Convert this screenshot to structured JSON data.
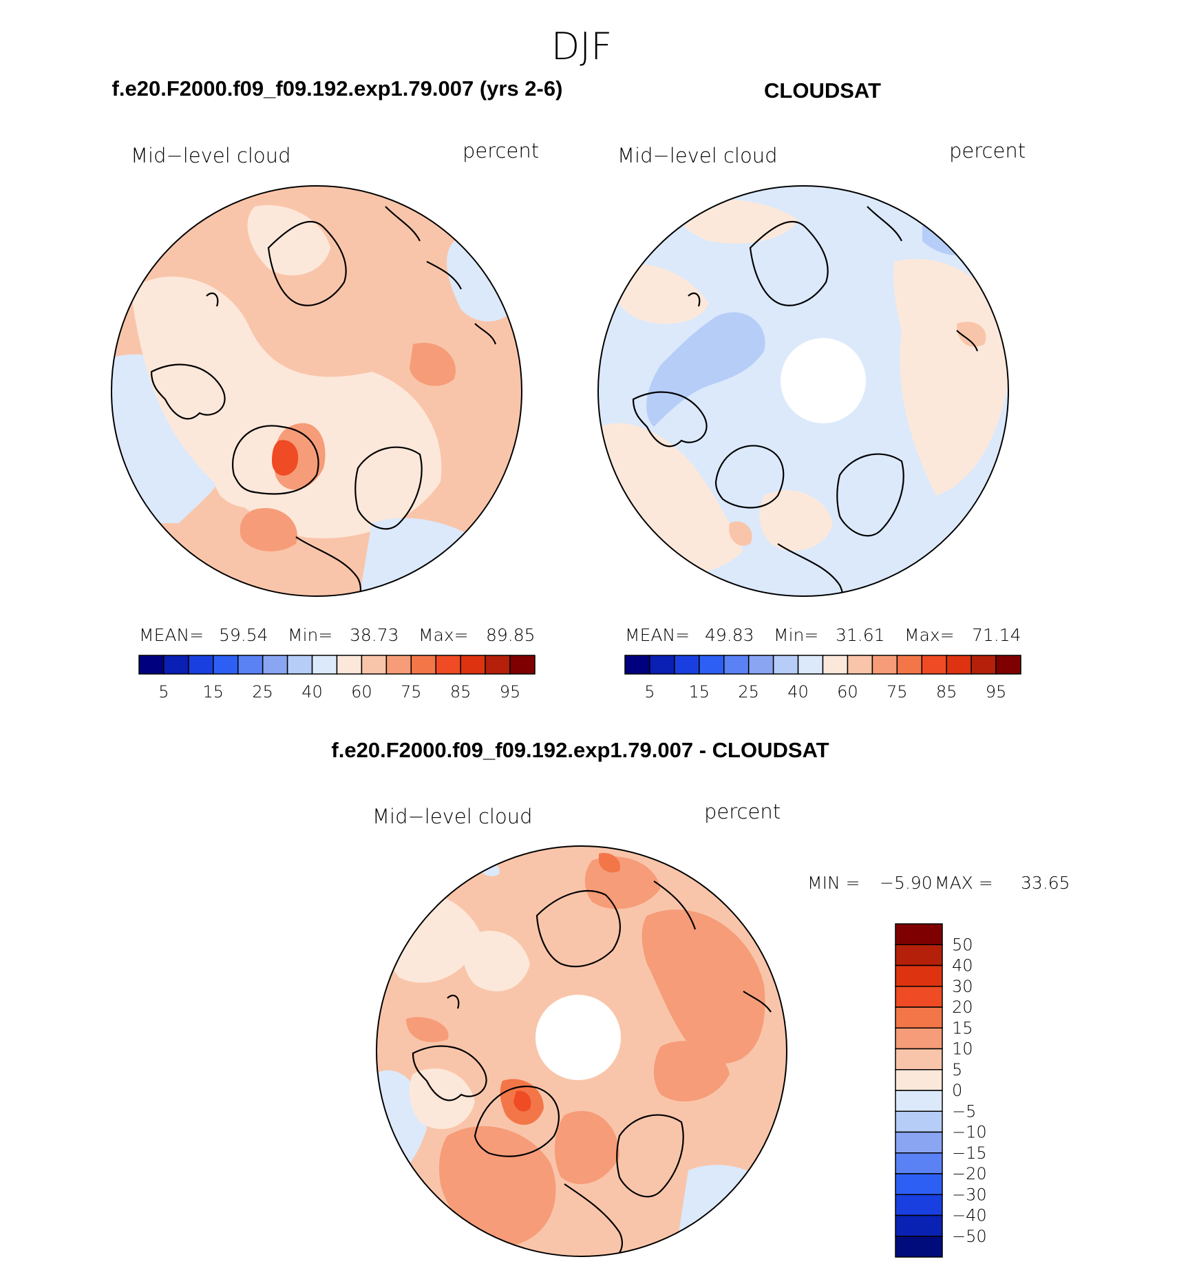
{
  "figure_title": "DJF",
  "panels": [
    {
      "title": "f.e20.F2000.f09_f09.192.exp1.79.007 (yrs 2-6)",
      "left_label": "Mid−level cloud",
      "right_label": "percent",
      "stats": {
        "mean_label": "MEAN=",
        "mean": "59.54",
        "min_label": "Min=",
        "min": "38.73",
        "max_label": "Max=",
        "max": "89.85"
      }
    },
    {
      "title": "CLOUDSAT",
      "left_label": "Mid−level cloud",
      "right_label": "percent",
      "stats": {
        "mean_label": "MEAN=",
        "mean": "49.83",
        "min_label": "Min=",
        "min": "31.61",
        "max_label": "Max=",
        "max": "71.14"
      }
    },
    {
      "title": "f.e20.F2000.f09_f09.192.exp1.79.007 - CLOUDSAT",
      "left_label": "Mid−level cloud",
      "right_label": "percent",
      "stats": {
        "min_label": "MIN =",
        "min": "−5.90",
        "max_label": "MAX =",
        "max": "33.65"
      }
    }
  ],
  "colors": {
    "palette": [
      "#00007f",
      "#0a1fb4",
      "#1a3fe0",
      "#2e5ff5",
      "#5a82f5",
      "#8aa6f3",
      "#b6cdf8",
      "#dbe9fb",
      "#fce8da",
      "#f9c5aa",
      "#f69c78",
      "#f37649",
      "#ef4b24",
      "#dd3310",
      "#b4200a",
      "#7f0000"
    ],
    "diff_palette": [
      "#000c7c",
      "#0a22b4",
      "#1a3fe0",
      "#2e5ff5",
      "#5a82f5",
      "#8aa6f3",
      "#b6cdf8",
      "#dbe9fb",
      "#fce8da",
      "#f9c5aa",
      "#f69c78",
      "#f37649",
      "#ef4b24",
      "#dd3310",
      "#b4200a",
      "#7f0000"
    ]
  },
  "chart_data": [
    {
      "type": "heatmap",
      "title": "f.e20.F2000.f09_f09.192.exp1.79.007 (yrs 2-6)",
      "variable": "Mid−level cloud",
      "units": "percent",
      "projection": "north polar stereographic",
      "colorbar_tick_labels": [
        "5",
        "15",
        "25",
        "40",
        "60",
        "75",
        "85",
        "95"
      ],
      "contour_levels": [
        5,
        10,
        15,
        20,
        25,
        30,
        40,
        50,
        60,
        70,
        75,
        80,
        85,
        90,
        95
      ],
      "mean": 59.54,
      "min": 38.73,
      "max": 89.85
    },
    {
      "type": "heatmap",
      "title": "CLOUDSAT",
      "variable": "Mid−level cloud",
      "units": "percent",
      "projection": "north polar stereographic",
      "colorbar_tick_labels": [
        "5",
        "15",
        "25",
        "40",
        "60",
        "75",
        "85",
        "95"
      ],
      "contour_levels": [
        5,
        10,
        15,
        20,
        25,
        30,
        40,
        50,
        60,
        70,
        75,
        80,
        85,
        90,
        95
      ],
      "mean": 49.83,
      "min": 31.61,
      "max": 71.14
    },
    {
      "type": "heatmap",
      "title": "f.e20.F2000.f09_f09.192.exp1.79.007 - CLOUDSAT",
      "variable": "Mid−level cloud",
      "units": "percent",
      "projection": "north polar stereographic",
      "colorbar_tick_labels": [
        "50",
        "40",
        "30",
        "20",
        "15",
        "10",
        "5",
        "0",
        "−5",
        "−10",
        "−15",
        "−20",
        "−30",
        "−40",
        "−50"
      ],
      "contour_levels": [
        -50,
        -40,
        -30,
        -20,
        -15,
        -10,
        -5,
        0,
        5,
        10,
        15,
        20,
        30,
        40,
        50
      ],
      "min": -5.9,
      "max": 33.65
    }
  ]
}
